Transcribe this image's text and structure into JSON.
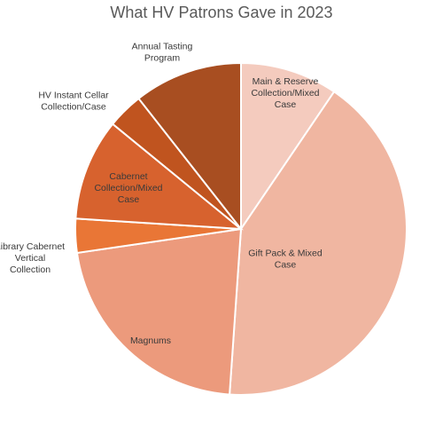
{
  "chart_data": {
    "type": "pie",
    "title": "What HV Patrons Gave in 2023",
    "start": "top, clockwise",
    "slices": [
      {
        "name": "Main & Reserve Collection/Mixed Case",
        "lines": [
          "Main & Reserve",
          "Collection/Mixed",
          "Case"
        ],
        "value": 9.5,
        "color": "#F4CBBE",
        "label_position": "inside"
      },
      {
        "name": "Gift Pack & Mixed Case",
        "lines": [
          "Gift Pack & Mixed",
          "Case"
        ],
        "value": 41.6,
        "color": "#F0B6A1",
        "label_position": "inside"
      },
      {
        "name": "Magnums",
        "lines": [
          "Magnums"
        ],
        "value": 21.6,
        "color": "#EC9A7C",
        "label_position": "inside"
      },
      {
        "name": "Library Cabernet Vertical Collection",
        "lines": [
          "Library Cabernet",
          "Vertical",
          "Collection"
        ],
        "value": 3.3,
        "color": "#E97636",
        "label_position": "outside"
      },
      {
        "name": "Cabernet Collection/Mixed Case",
        "lines": [
          "Cabernet",
          "Collection/Mixed",
          "Case"
        ],
        "value": 9.9,
        "color": "#D7622E",
        "label_position": "inside"
      },
      {
        "name": "HV Instant Cellar Collection/Case",
        "lines": [
          "HV Instant Cellar",
          "Collection/Case"
        ],
        "value": 3.5,
        "color": "#C0541F",
        "label_position": "outside"
      },
      {
        "name": "Annual Tasting Program",
        "lines": [
          "Annual Tasting",
          "Program"
        ],
        "value": 10.6,
        "color": "#A84E21",
        "label_position": "outside"
      }
    ]
  }
}
